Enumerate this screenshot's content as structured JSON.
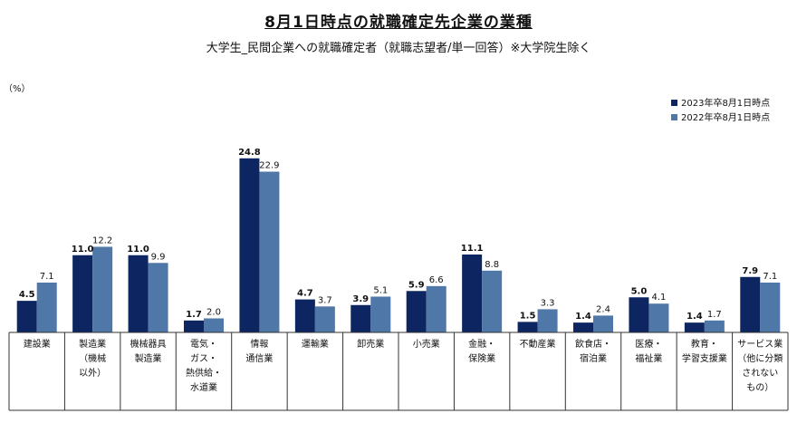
{
  "title": "8月1日時点の就職確定先企業の業種",
  "subtitle": "大学生_民間企業への就職確定者（就職志望者/単一回答）※大学院生除く",
  "unit": "（%）",
  "colors": {
    "series_2023": "#0d2560",
    "series_2022": "#4f77a8",
    "axis": "#333333"
  },
  "chart_data": {
    "type": "bar",
    "categories": [
      [
        "建設業"
      ],
      [
        "製造業",
        "（機械",
        "以外）"
      ],
      [
        "機械器具",
        "製造業"
      ],
      [
        "電気・",
        "ガス・",
        "熱供給・",
        "水道業"
      ],
      [
        "情報",
        "通信業"
      ],
      [
        "運輸業"
      ],
      [
        "卸売業"
      ],
      [
        "小売業"
      ],
      [
        "金融・",
        "保険業"
      ],
      [
        "不動産業"
      ],
      [
        "飲食店・",
        "宿泊業"
      ],
      [
        "医療・",
        "福祉業"
      ],
      [
        "教育・",
        "学習支援業"
      ],
      [
        "サービス業",
        "（他に分類",
        "されない",
        "もの）"
      ]
    ],
    "series": [
      {
        "name": "2023年卒8月1日時点",
        "values": [
          4.5,
          11.0,
          11.0,
          1.7,
          24.8,
          4.7,
          3.9,
          5.9,
          11.1,
          1.5,
          1.4,
          5.0,
          1.4,
          7.9
        ]
      },
      {
        "name": "2022年卒8月1日時点",
        "values": [
          7.1,
          12.2,
          9.9,
          2.0,
          22.9,
          3.7,
          5.1,
          6.6,
          8.8,
          3.3,
          2.4,
          4.1,
          1.7,
          7.1
        ]
      }
    ],
    "value_labels_2023": [
      "4.5",
      "11.0",
      "11.0",
      "1.7",
      "24.8",
      "4.7",
      "3.9",
      "5.9",
      "11.1",
      "1.5",
      "1.4",
      "5.0",
      "1.4",
      "7.9"
    ],
    "value_labels_2022": [
      "7.1",
      "12.2",
      "9.9",
      "2.0",
      "22.9",
      "3.7",
      "5.1",
      "6.6",
      "8.8",
      "3.3",
      "2.4",
      "4.1",
      "1.7",
      "7.1"
    ],
    "ylim": [
      0,
      26
    ],
    "legend": "top-right",
    "grid": false
  }
}
